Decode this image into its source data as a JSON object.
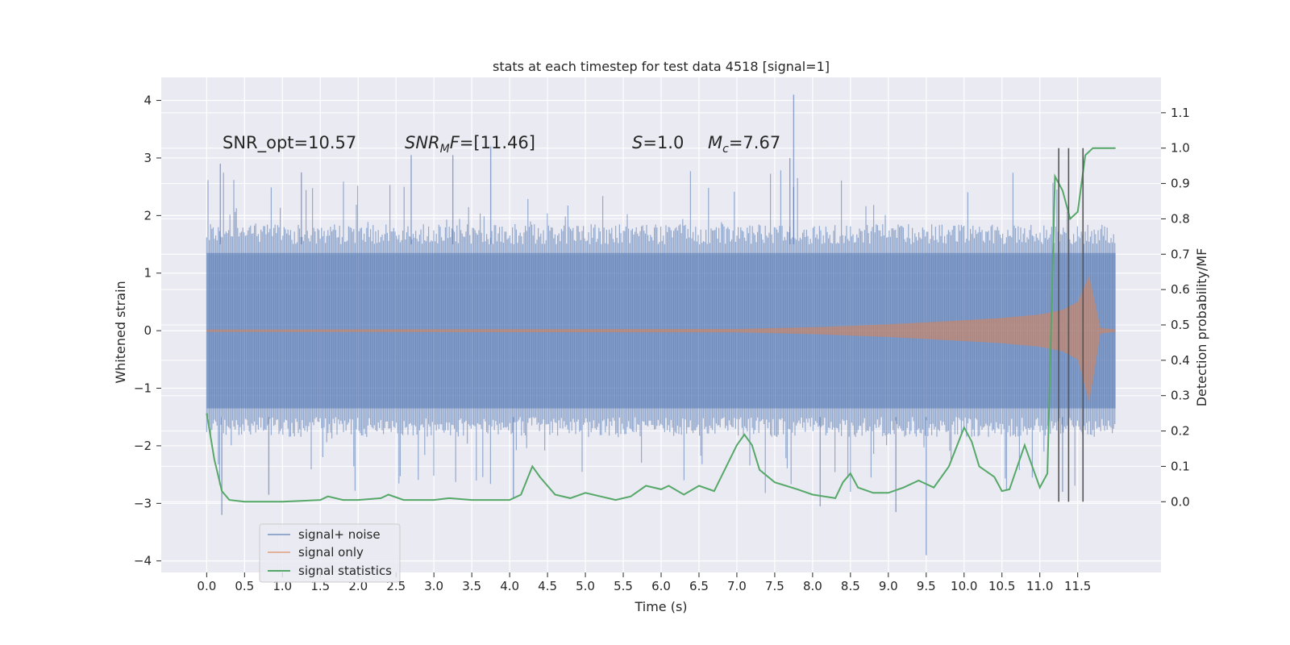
{
  "chart_data": {
    "type": "line",
    "title": "stats at each timestep for test data 4518 [signal=1]",
    "xlabel": "Time (s)",
    "ylabel": "Whitened strain",
    "ylabel_right": "Detection probability/MF",
    "xlim": [
      -0.6,
      12.6
    ],
    "ylim": [
      -4.2,
      4.4
    ],
    "ylim_right": [
      -0.2,
      1.2
    ],
    "x_ticks": [
      "0.0",
      "0.5",
      "1.0",
      "1.5",
      "2.0",
      "2.5",
      "3.0",
      "3.5",
      "4.0",
      "4.5",
      "5.0",
      "5.5",
      "6.0",
      "6.5",
      "7.0",
      "7.5",
      "8.0",
      "8.5",
      "9.0",
      "9.5",
      "10.0",
      "10.5",
      "11.0",
      "11.5"
    ],
    "y_ticks": [
      "4",
      "3",
      "2",
      "1",
      "0",
      "−1",
      "−2",
      "−3",
      "−4"
    ],
    "y_ticks_right": [
      "1.1",
      "1.0",
      "0.9",
      "0.8",
      "0.7",
      "0.6",
      "0.5",
      "0.4",
      "0.3",
      "0.2",
      "0.1",
      "0.0"
    ],
    "grid": true,
    "legend_position": "lower-left",
    "colors": {
      "background": "#eaeaf2",
      "grid": "#ffffff",
      "signal_noise": "#4c72b0",
      "signal_only": "#dd8452",
      "statistics": "#55a868",
      "vlines": "#555555"
    },
    "annotations": [
      {
        "text": "SNR_opt=10.57",
        "x": 0.2,
        "y": 3.25
      },
      {
        "text": "=[11.46]",
        "x": 2.6,
        "y": 3.25,
        "math": "SNR_MF"
      },
      {
        "text": "=1.0",
        "x": 5.6,
        "y": 3.25,
        "math": "S"
      },
      {
        "text": "=7.67",
        "x": 6.6,
        "y": 3.25,
        "math": "M_c"
      }
    ],
    "series": [
      {
        "name": "signal+ noise",
        "kind": "noise",
        "x_range": [
          0.0,
          12.0
        ],
        "envelope_upper": 1.8,
        "envelope_lower": -1.8,
        "core_band": [
          -1.35,
          1.35
        ],
        "peaks": [
          {
            "x": 0.18,
            "y": 2.9
          },
          {
            "x": 0.82,
            "y": -2.85
          },
          {
            "x": 1.25,
            "y": 2.75
          },
          {
            "x": 2.7,
            "y": 3.05
          },
          {
            "x": 3.25,
            "y": 3.05
          },
          {
            "x": 3.75,
            "y": 3.2
          },
          {
            "x": 4.05,
            "y": -2.9
          },
          {
            "x": 7.75,
            "y": 4.1
          },
          {
            "x": 7.7,
            "y": 3.0
          },
          {
            "x": 8.1,
            "y": -3.05
          },
          {
            "x": 9.1,
            "y": -3.15
          },
          {
            "x": 9.5,
            "y": -3.9
          },
          {
            "x": 11.3,
            "y": -2.8
          },
          {
            "x": 0.2,
            "y": -3.2
          }
        ]
      },
      {
        "name": "signal only",
        "kind": "chirp",
        "x": [
          0.0,
          7.0,
          8.0,
          9.0,
          10.0,
          10.5,
          11.0,
          11.3,
          11.5,
          11.65,
          11.72,
          11.8,
          12.0
        ],
        "amplitude": [
          0.02,
          0.03,
          0.06,
          0.11,
          0.18,
          0.22,
          0.28,
          0.36,
          0.5,
          0.95,
          0.55,
          0.05,
          0.02
        ]
      },
      {
        "name": "signal statistics",
        "kind": "line",
        "axis": "right",
        "x": [
          0.0,
          0.1,
          0.2,
          0.3,
          0.5,
          0.7,
          1.0,
          1.5,
          1.6,
          1.8,
          2.0,
          2.3,
          2.4,
          2.6,
          3.0,
          3.2,
          3.5,
          4.0,
          4.15,
          4.3,
          4.4,
          4.6,
          4.8,
          5.0,
          5.2,
          5.4,
          5.6,
          5.8,
          6.0,
          6.1,
          6.3,
          6.5,
          6.7,
          7.0,
          7.1,
          7.2,
          7.3,
          7.5,
          7.8,
          8.0,
          8.3,
          8.4,
          8.5,
          8.6,
          8.8,
          9.0,
          9.2,
          9.4,
          9.6,
          9.8,
          10.0,
          10.1,
          10.2,
          10.4,
          10.5,
          10.6,
          10.8,
          11.0,
          11.1,
          11.2,
          11.3,
          11.4,
          11.5,
          11.6,
          11.7,
          11.8,
          12.0
        ],
        "y": [
          0.25,
          0.12,
          0.03,
          0.005,
          0.0,
          0.0,
          0.0,
          0.005,
          0.015,
          0.005,
          0.005,
          0.01,
          0.02,
          0.005,
          0.005,
          0.01,
          0.005,
          0.005,
          0.02,
          0.1,
          0.07,
          0.02,
          0.01,
          0.025,
          0.015,
          0.005,
          0.015,
          0.045,
          0.035,
          0.045,
          0.02,
          0.045,
          0.03,
          0.16,
          0.19,
          0.16,
          0.09,
          0.055,
          0.035,
          0.02,
          0.01,
          0.055,
          0.08,
          0.04,
          0.025,
          0.025,
          0.04,
          0.06,
          0.04,
          0.1,
          0.21,
          0.17,
          0.1,
          0.07,
          0.03,
          0.035,
          0.16,
          0.04,
          0.08,
          0.92,
          0.88,
          0.8,
          0.82,
          0.98,
          1.0,
          1.0,
          1.0
        ]
      }
    ],
    "vlines": [
      11.25,
      11.38,
      11.57
    ]
  }
}
